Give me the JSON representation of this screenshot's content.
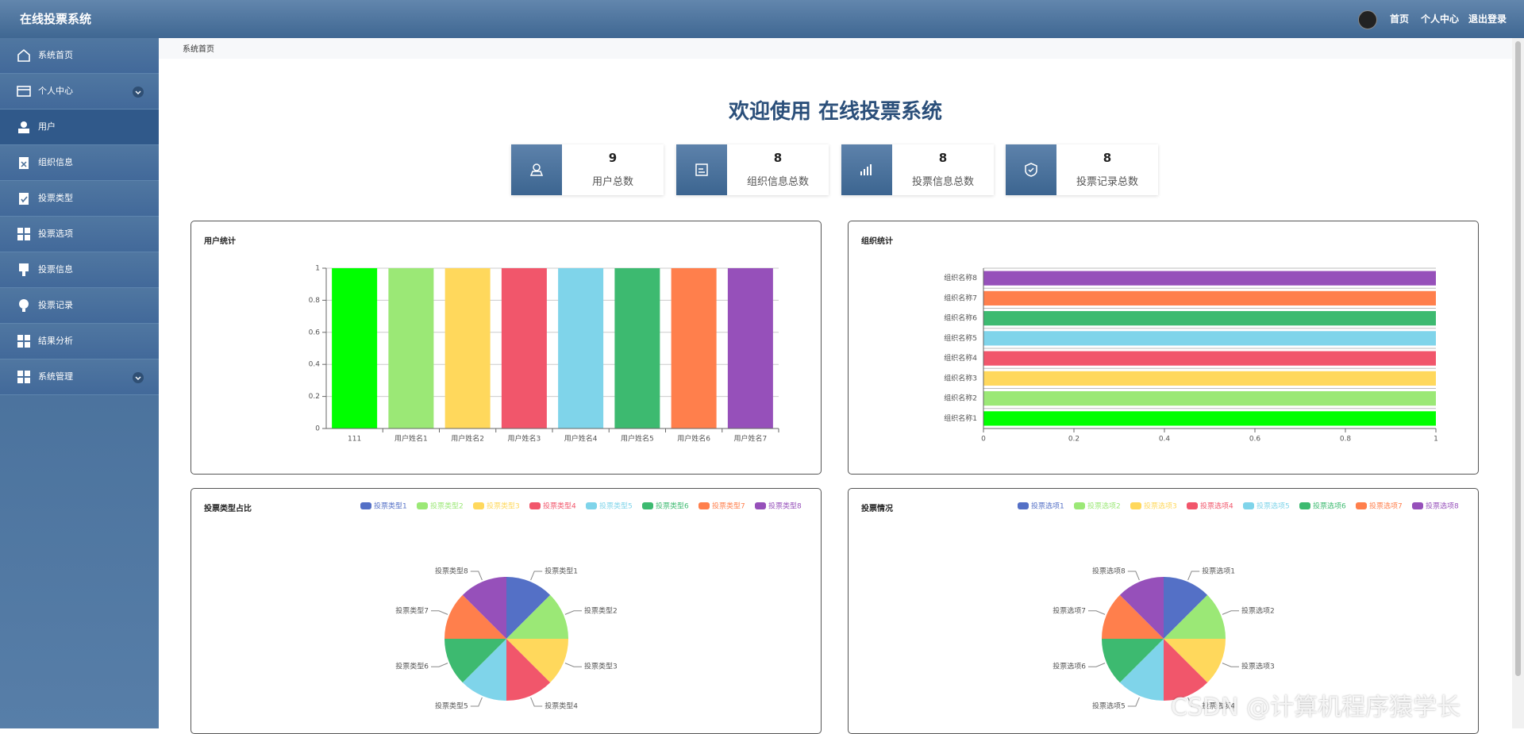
{
  "header": {
    "title": "在线投票系统",
    "links": [
      "首页",
      "个人中心",
      "退出登录"
    ]
  },
  "sidebar": {
    "items": [
      "系统首页",
      "个人中心",
      "用户",
      "组织信息",
      "投票类型",
      "投票选项",
      "投票信息",
      "投票记录",
      "结果分析",
      "系统管理"
    ]
  },
  "breadcrumb": "系统首页",
  "welcome": "欢迎使用 在线投票系统",
  "stats": [
    {
      "value": 9,
      "label": "用户总数"
    },
    {
      "value": 8,
      "label": "组织信息总数"
    },
    {
      "value": 8,
      "label": "投票信息总数"
    },
    {
      "value": 8,
      "label": "投票记录总数"
    }
  ],
  "watermark": "CSDN @计算机程序猿学长",
  "chart_data": [
    {
      "type": "bar",
      "title": "用户统计",
      "categories": [
        "111",
        "用户姓名1",
        "用户姓名2",
        "用户姓名3",
        "用户姓名4",
        "用户姓名5",
        "用户姓名6",
        "用户姓名7"
      ],
      "values": [
        1,
        1,
        1,
        1,
        1,
        1,
        1,
        1
      ],
      "colors": [
        "#00ff00",
        "#9be876",
        "#ffd85c",
        "#f1566b",
        "#7fd4ea",
        "#3dba70",
        "#ff7f4c",
        "#9650ba"
      ],
      "ylim": [
        0,
        1
      ],
      "yticks": [
        0,
        0.2,
        0.4,
        0.6,
        0.8,
        1
      ],
      "grid": true
    },
    {
      "type": "barh",
      "title": "组织统计",
      "categories": [
        "组织名称1",
        "组织名称2",
        "组织名称3",
        "组织名称4",
        "组织名称5",
        "组织名称6",
        "组织名称7",
        "组织名称8"
      ],
      "values": [
        1,
        1,
        1,
        1,
        1,
        1,
        1,
        1
      ],
      "colors": [
        "#00ff00",
        "#9be876",
        "#ffd85c",
        "#f1566b",
        "#7fd4ea",
        "#3dba70",
        "#ff7f4c",
        "#9650ba"
      ],
      "xlim": [
        0,
        1
      ],
      "xticks": [
        0,
        0.2,
        0.4,
        0.6,
        0.8,
        1
      ],
      "grid": false
    },
    {
      "type": "pie",
      "title": "投票类型占比",
      "categories": [
        "投票类型1",
        "投票类型2",
        "投票类型3",
        "投票类型4",
        "投票类型5",
        "投票类型6",
        "投票类型7",
        "投票类型8"
      ],
      "values": [
        1,
        1,
        1,
        1,
        1,
        1,
        1,
        1
      ],
      "colors": [
        "#5470c6",
        "#9be876",
        "#ffd85c",
        "#f1566b",
        "#7fd4ea",
        "#3dba70",
        "#ff7f4c",
        "#9650ba"
      ],
      "legend": "top-right"
    },
    {
      "type": "pie",
      "title": "投票情况",
      "categories": [
        "投票选项1",
        "投票选项2",
        "投票选项3",
        "投票选项4",
        "投票选项5",
        "投票选项6",
        "投票选项7",
        "投票选项8"
      ],
      "values": [
        1,
        1,
        1,
        1,
        1,
        1,
        1,
        1
      ],
      "colors": [
        "#5470c6",
        "#9be876",
        "#ffd85c",
        "#f1566b",
        "#7fd4ea",
        "#3dba70",
        "#ff7f4c",
        "#9650ba"
      ],
      "legend": "top-right"
    }
  ]
}
